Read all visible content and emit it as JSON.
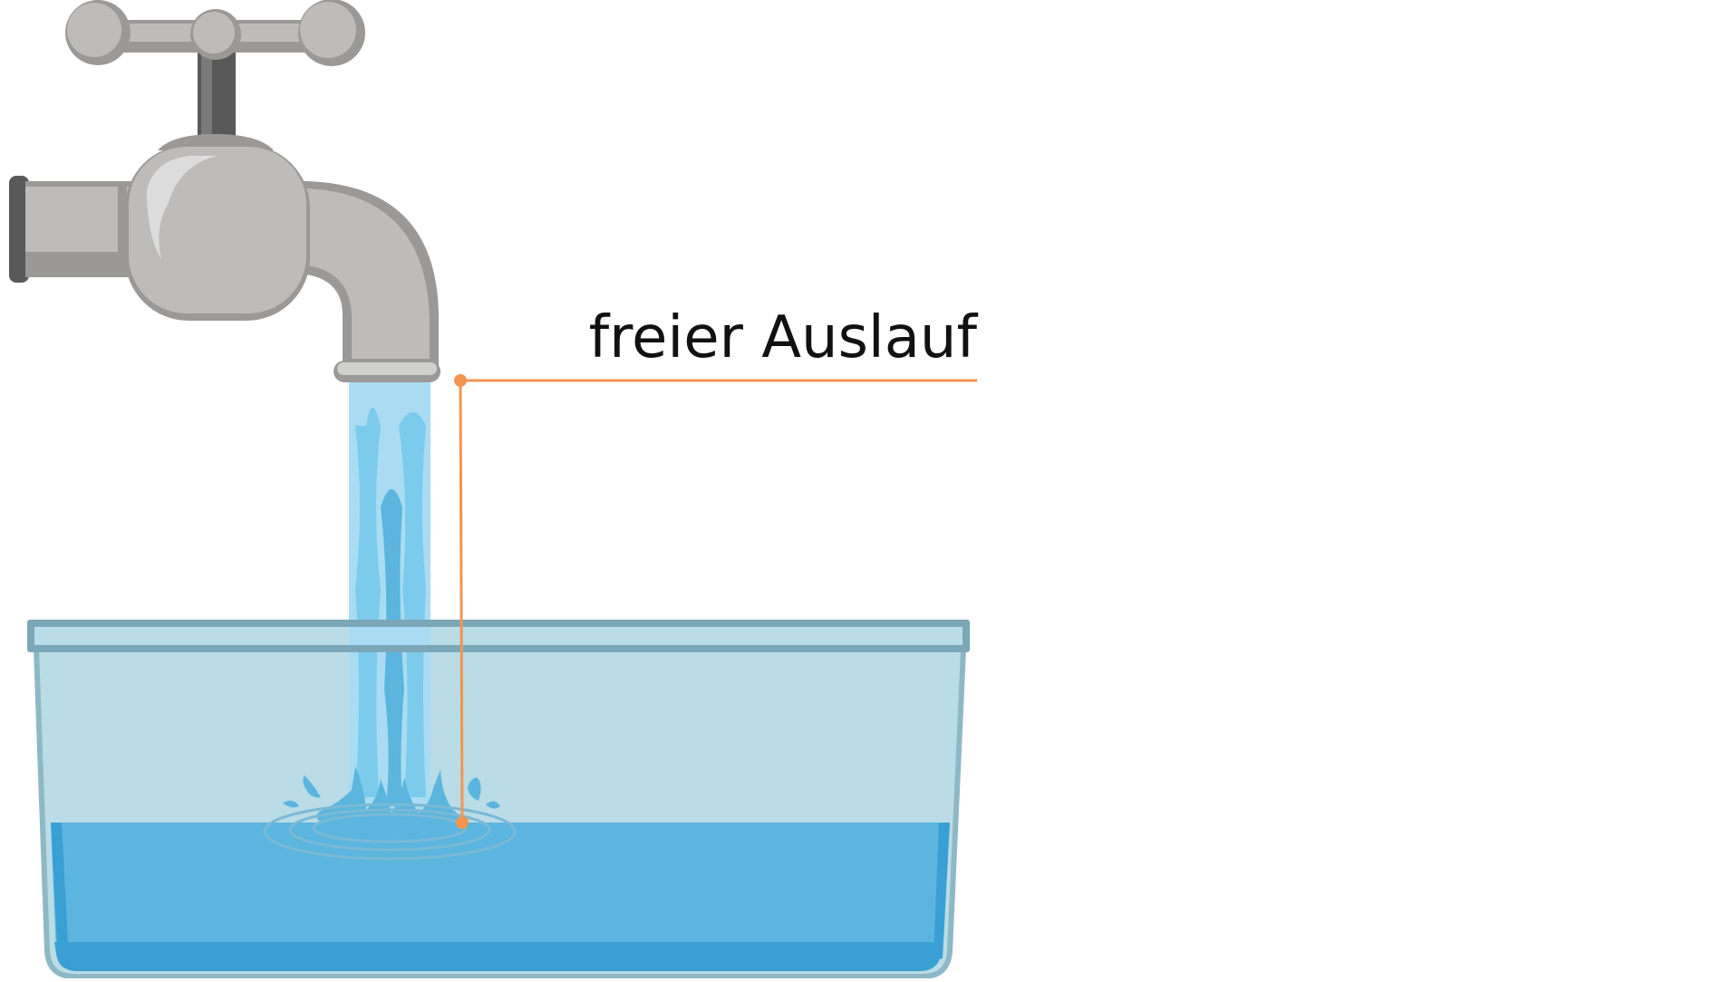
{
  "diagram": {
    "label": "freier Auslauf"
  },
  "colors": {
    "background": "#ffffff",
    "faucet_body": "#bdbcbb",
    "faucet_shadow": "#9a9998",
    "faucet_dark": "#595959",
    "faucet_highlight": "#dcdcdc",
    "water_stream_light": "#a9dcf3",
    "water_stream_mid": "#7ccbec",
    "water_surface": "#5bb5de",
    "water_deep": "#3a9fd3",
    "basin_wall": "#b9dce6",
    "basin_rim": "#7ba7b8",
    "annotation": "#f39450",
    "label_text": "#111111"
  }
}
